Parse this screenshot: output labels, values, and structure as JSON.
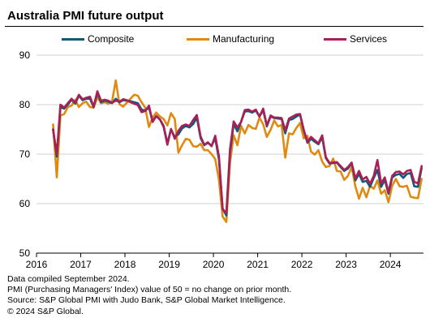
{
  "header": {
    "title": "Australia PMI future output"
  },
  "footnotes": [
    "Data compiled September 2024.",
    "PMI (Purchasing Managers' Index) value of 50 = no change on prior month.",
    "Source: S&P Global PMI with Judo Bank, S&P Global Market Intelligence.",
    "© 2024 S&P Global."
  ],
  "chart_data": {
    "type": "line",
    "title": "Australia PMI future output",
    "xlabel": "",
    "ylabel": "",
    "ylim": [
      50,
      90
    ],
    "yticks": [
      50,
      60,
      70,
      80,
      90
    ],
    "xlim": [
      2016,
      2024.75
    ],
    "xticks": [
      2016,
      2017,
      2018,
      2019,
      2020,
      2021,
      2022,
      2023,
      2024
    ],
    "grid": "horizontal",
    "legend_position": "top",
    "x_start": 2016.375,
    "x_step": 0.0833333,
    "series": [
      {
        "name": "Composite",
        "color": "#0e5a78",
        "values": [
          75.0,
          69.5,
          79.5,
          79.2,
          80.0,
          81.0,
          80.2,
          81.8,
          80.9,
          81.2,
          81.2,
          79.5,
          82.4,
          80.5,
          80.8,
          80.6,
          80.3,
          81.2,
          80.5,
          80.9,
          80.8,
          80.7,
          80.5,
          80.3,
          79.0,
          78.8,
          79.4,
          76.6,
          77.7,
          77.0,
          75.7,
          72.2,
          75.0,
          73.5,
          74.0,
          75.2,
          75.7,
          75.4,
          76.1,
          77.4,
          73.3,
          71.8,
          72.3,
          71.7,
          73.2,
          68.9,
          59.0,
          57.6,
          70.3,
          76.1,
          74.6,
          76.5,
          78.6,
          78.7,
          78.4,
          78.8,
          77.6,
          78.9,
          75.6,
          77.6,
          77.3,
          77.2,
          77.1,
          74.2,
          76.9,
          77.1,
          77.6,
          78.0,
          74.8,
          72.3,
          73.1,
          72.5,
          72.0,
          73.4,
          69.2,
          68.1,
          68.2,
          68.3,
          67.4,
          66.6,
          67.1,
          68.2,
          64.7,
          66.0,
          64.4,
          64.6,
          63.4,
          65.2,
          66.8,
          63.4,
          64.8,
          62.0,
          65.3,
          65.8,
          66.0,
          65.2,
          66.0,
          66.2,
          63.5,
          63.4,
          67.2
        ]
      },
      {
        "name": "Manufacturing",
        "color": "#e08a12",
        "values": [
          76.0,
          65.3,
          77.8,
          78.1,
          79.5,
          79.8,
          81.0,
          79.5,
          80.3,
          80.6,
          79.5,
          79.4,
          81.5,
          80.3,
          80.5,
          80.2,
          80.6,
          84.9,
          80.1,
          79.6,
          80.4,
          81.2,
          82.0,
          81.8,
          80.5,
          79.4,
          75.5,
          77.4,
          78.4,
          77.6,
          77.1,
          75.8,
          78.3,
          77.1,
          70.3,
          71.8,
          73.1,
          72.9,
          71.6,
          71.5,
          72.1,
          70.8,
          70.8,
          70.0,
          69.0,
          64.8,
          57.4,
          56.3,
          68.3,
          73.8,
          71.8,
          75.7,
          74.2,
          75.9,
          75.3,
          75.1,
          77.4,
          76.0,
          73.5,
          74.9,
          76.8,
          75.6,
          75.9,
          69.3,
          74.2,
          74.0,
          75.3,
          76.3,
          73.2,
          73.7,
          70.5,
          69.9,
          70.8,
          68.5,
          67.4,
          67.6,
          69.1,
          66.6,
          66.5,
          64.8,
          65.6,
          67.4,
          63.5,
          61.0,
          63.2,
          61.3,
          63.6,
          63.0,
          64.7,
          62.0,
          62.7,
          60.3,
          63.6,
          65.0,
          63.5,
          63.4,
          63.6,
          61.4,
          61.2,
          61.1,
          65.0
        ]
      },
      {
        "name": "Services",
        "color": "#aa1f55",
        "values": [
          75.0,
          70.0,
          80.0,
          79.4,
          80.3,
          81.2,
          80.4,
          82.0,
          81.1,
          81.4,
          81.6,
          79.6,
          82.7,
          80.8,
          81.0,
          80.8,
          80.4,
          80.8,
          80.6,
          81.1,
          80.9,
          80.5,
          80.2,
          79.9,
          78.5,
          78.7,
          79.8,
          76.5,
          77.7,
          77.0,
          75.5,
          71.9,
          75.1,
          73.1,
          74.7,
          75.7,
          76.0,
          75.7,
          76.9,
          77.9,
          73.6,
          71.9,
          72.4,
          71.6,
          73.7,
          69.5,
          58.9,
          58.1,
          71.0,
          76.6,
          75.4,
          76.5,
          78.9,
          79.0,
          78.6,
          79.0,
          77.6,
          79.2,
          75.8,
          77.8,
          77.4,
          77.4,
          77.3,
          74.8,
          77.2,
          77.6,
          78.0,
          78.1,
          74.9,
          72.5,
          73.5,
          72.8,
          72.2,
          73.8,
          69.4,
          68.2,
          68.3,
          68.4,
          67.6,
          66.8,
          67.4,
          68.3,
          65.1,
          66.6,
          64.9,
          65.4,
          64.0,
          65.6,
          68.8,
          64.1,
          65.3,
          62.3,
          65.6,
          66.4,
          66.5,
          65.9,
          66.6,
          66.8,
          64.4,
          64.1,
          67.6
        ]
      }
    ]
  }
}
